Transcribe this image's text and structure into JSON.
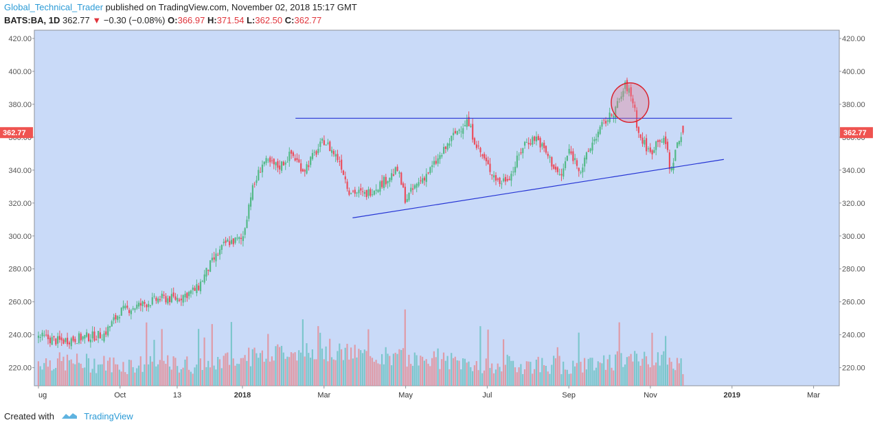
{
  "header": {
    "author": "Global_Technical_Trader",
    "published": "published on TradingView.com, November 02, 2018 15:17 GMT"
  },
  "ticker": {
    "symbol": "BATS:BA, 1D",
    "last": "362.77",
    "change": "−0.30 (−0.08%)",
    "o_label": "O:",
    "o": "366.97",
    "h_label": "H:",
    "h": "371.54",
    "l_label": "L:",
    "l": "362.50",
    "c_label": "C:",
    "c": "362.77"
  },
  "footer": {
    "created_with": "Created with",
    "brand": "TradingView"
  },
  "chart_data": {
    "type": "candlestick",
    "y_ticks": [
      "420.00",
      "400.00",
      "380.00",
      "360.00",
      "340.00",
      "320.00",
      "300.00",
      "280.00",
      "260.00",
      "240.00",
      "220.00"
    ],
    "y_tick_values": [
      420,
      400,
      380,
      360,
      340,
      320,
      300,
      280,
      260,
      240,
      220
    ],
    "ylim": [
      209,
      425
    ],
    "x_labels": [
      {
        "label": "ug",
        "month": 0
      },
      {
        "label": "Oct",
        "month": 2
      },
      {
        "label": "13",
        "month": 3.4
      },
      {
        "label": "2018",
        "month": 5
      },
      {
        "label": "Mar",
        "month": 7
      },
      {
        "label": "May",
        "month": 9
      },
      {
        "label": "Jul",
        "month": 11
      },
      {
        "label": "Sep",
        "month": 13
      },
      {
        "label": "Nov",
        "month": 15
      },
      {
        "label": "2019",
        "month": 17
      },
      {
        "label": "Mar",
        "month": 19
      }
    ],
    "last_price_label": "362.77",
    "close_path_monthly": [
      [
        0,
        239
      ],
      [
        0.5,
        236
      ],
      [
        1,
        238
      ],
      [
        1.6,
        240
      ],
      [
        2,
        254
      ],
      [
        2.5,
        258
      ],
      [
        3,
        262
      ],
      [
        3.4,
        262
      ],
      [
        3.9,
        268
      ],
      [
        4.2,
        282
      ],
      [
        4.6,
        296
      ],
      [
        5,
        298
      ],
      [
        5.2,
        325
      ],
      [
        5.5,
        345
      ],
      [
        5.9,
        342
      ],
      [
        6.2,
        350
      ],
      [
        6.5,
        340
      ],
      [
        7,
        358
      ],
      [
        7.4,
        345
      ],
      [
        7.6,
        328
      ],
      [
        8,
        325
      ],
      [
        8.4,
        332
      ],
      [
        8.8,
        340
      ],
      [
        9,
        322
      ],
      [
        9.3,
        332
      ],
      [
        9.6,
        340
      ],
      [
        9.9,
        350
      ],
      [
        10.2,
        362
      ],
      [
        10.5,
        370
      ],
      [
        10.8,
        352
      ],
      [
        11,
        343
      ],
      [
        11.3,
        332
      ],
      [
        11.6,
        338
      ],
      [
        11.9,
        356
      ],
      [
        12.2,
        360
      ],
      [
        12.5,
        348
      ],
      [
        12.8,
        335
      ],
      [
        13,
        352
      ],
      [
        13.3,
        340
      ],
      [
        13.6,
        358
      ],
      [
        13.9,
        370
      ],
      [
        14,
        372
      ],
      [
        14.2,
        380
      ],
      [
        14.4,
        392
      ],
      [
        14.6,
        380
      ],
      [
        14.7,
        362
      ],
      [
        15,
        350
      ],
      [
        15.2,
        360
      ],
      [
        15.4,
        355
      ],
      [
        15.5,
        337
      ],
      [
        15.6,
        352
      ],
      [
        15.8,
        362.77
      ]
    ],
    "volume_envelope_monthly": [
      [
        0,
        224
      ],
      [
        2,
        222
      ],
      [
        4,
        222
      ],
      [
        5,
        226
      ],
      [
        5.5,
        228
      ],
      [
        6,
        230
      ],
      [
        7,
        230
      ],
      [
        8,
        228
      ],
      [
        9,
        226
      ],
      [
        10,
        224
      ],
      [
        11,
        222
      ],
      [
        12,
        222
      ],
      [
        13,
        222
      ],
      [
        14,
        224
      ],
      [
        15,
        226
      ],
      [
        15.8,
        222
      ]
    ],
    "trendlines": [
      {
        "name": "resistance",
        "from": [
          6.3,
          371.5
        ],
        "to": [
          17,
          371.5
        ]
      },
      {
        "name": "support",
        "from": [
          7.7,
          311
        ],
        "to": [
          16.8,
          346.5
        ]
      }
    ],
    "highlight_circle": {
      "month": 14.5,
      "price": 381,
      "radius_price": 12
    }
  }
}
